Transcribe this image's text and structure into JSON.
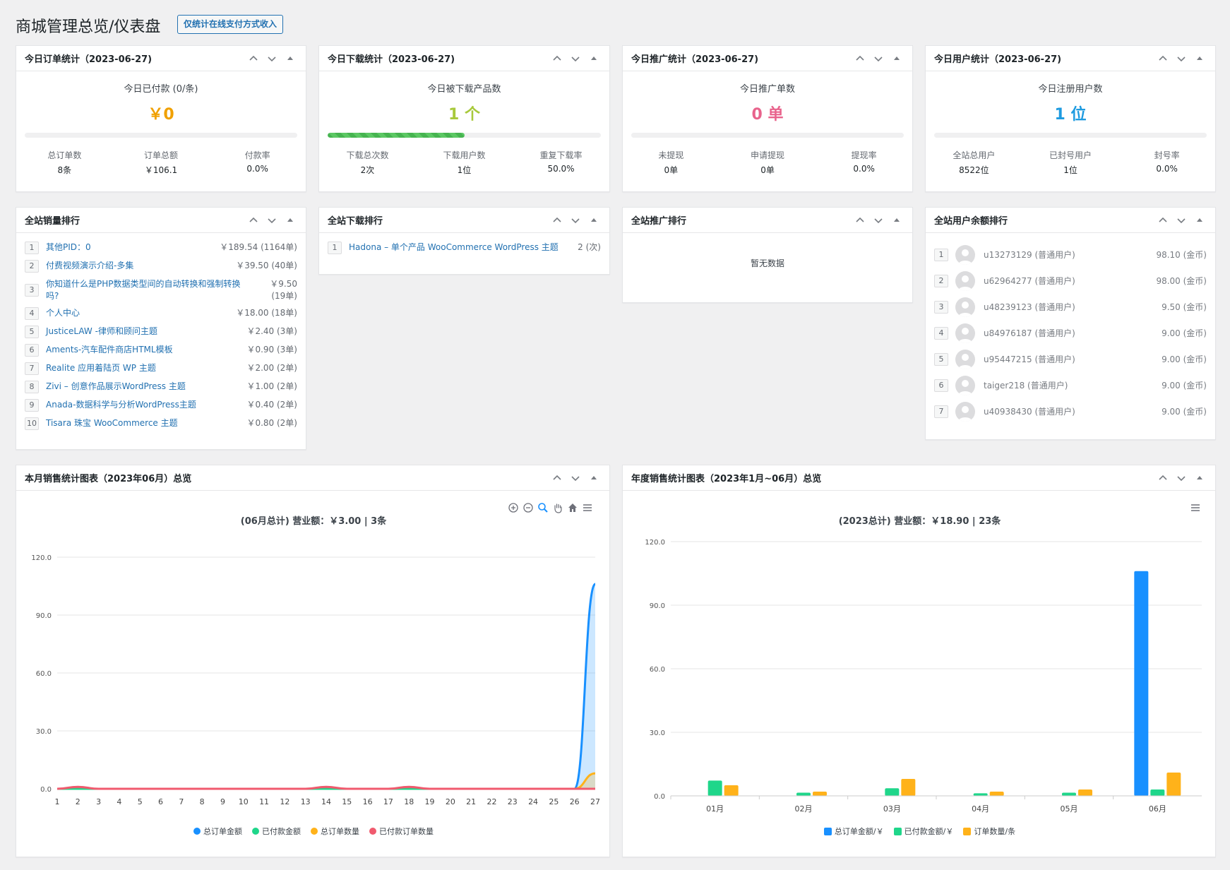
{
  "page": {
    "title": "商城管理总览/仪表盘",
    "filter_button": "仅统计在线支付方式收入"
  },
  "colors": {
    "orange": "#f0a000",
    "green": "#a8c93b",
    "pink": "#e8638c",
    "blue": "#1e9be0",
    "series_blue": "#1890ff",
    "series_green": "#1fd68a",
    "series_orange": "#ffb21a",
    "series_red": "#f05a6e"
  },
  "orders": {
    "title": "今日订单统计（2023-06-27)",
    "sub": "今日已付款 (0/条)",
    "big": "￥0",
    "progress": 0,
    "stats": [
      {
        "label": "总订单数",
        "value": "8条"
      },
      {
        "label": "订单总额",
        "value": "￥106.1"
      },
      {
        "label": "付款率",
        "value": "0.0%"
      }
    ]
  },
  "downloads": {
    "title": "今日下载统计（2023-06-27)",
    "sub": "今日被下载产品数",
    "big": "1 个",
    "progress": 0.5,
    "stats": [
      {
        "label": "下载总次数",
        "value": "2次"
      },
      {
        "label": "下载用户数",
        "value": "1位"
      },
      {
        "label": "重复下载率",
        "value": "50.0%"
      }
    ]
  },
  "promo": {
    "title": "今日推广统计（2023-06-27)",
    "sub": "今日推广单数",
    "big": "0 单",
    "progress": 0,
    "stats": [
      {
        "label": "未提现",
        "value": "0单"
      },
      {
        "label": "申请提现",
        "value": "0单"
      },
      {
        "label": "提现率",
        "value": "0.0%"
      }
    ]
  },
  "users": {
    "title": "今日用户统计（2023-06-27)",
    "sub": "今日注册用户数",
    "big": "1 位",
    "progress": 0,
    "stats": [
      {
        "label": "全站总用户",
        "value": "8522位"
      },
      {
        "label": "已封号用户",
        "value": "1位"
      },
      {
        "label": "封号率",
        "value": "0.0%"
      }
    ]
  },
  "sales_rank": {
    "title": "全站销量排行",
    "items": [
      {
        "n": "1",
        "name": "其他PID：0",
        "value": "￥189.54 (1164单)"
      },
      {
        "n": "2",
        "name": "付费视频演示介绍-多集",
        "value": "￥39.50 (40单)"
      },
      {
        "n": "3",
        "name": "你知道什么是PHP数据类型间的自动转换和强制转换吗?",
        "value": "￥9.50 (19单)"
      },
      {
        "n": "4",
        "name": "个人中心",
        "value": "￥18.00 (18单)"
      },
      {
        "n": "5",
        "name": "JusticeLAW -律师和顾问主题",
        "value": "￥2.40 (3单)"
      },
      {
        "n": "6",
        "name": "Aments-汽车配件商店HTML模板",
        "value": "￥0.90 (3单)"
      },
      {
        "n": "7",
        "name": "Realite 应用着陆页 WP 主题",
        "value": "￥2.00 (2单)"
      },
      {
        "n": "8",
        "name": "Zivi – 创意作品展示WordPress 主题",
        "value": "￥1.00 (2单)"
      },
      {
        "n": "9",
        "name": "Anada-数据科学与分析WordPress主题",
        "value": "￥0.40 (2单)"
      },
      {
        "n": "10",
        "name": "Tisara 珠宝 WooCommerce 主题",
        "value": "￥0.80 (2单)"
      }
    ]
  },
  "download_rank": {
    "title": "全站下载排行",
    "items": [
      {
        "n": "1",
        "name": "Hadona – 单个产品 WooCommerce WordPress 主题",
        "value": "2 (次)"
      }
    ]
  },
  "promo_rank": {
    "title": "全站推广排行",
    "empty": "暂无数据"
  },
  "balance_rank": {
    "title": "全站用户余额排行",
    "items": [
      {
        "n": "1",
        "name": "u13273129 (普通用户)",
        "value": "98.10 (金币)"
      },
      {
        "n": "2",
        "name": "u62964277 (普通用户)",
        "value": "98.00 (金币)"
      },
      {
        "n": "3",
        "name": "u48239123 (普通用户)",
        "value": "9.50 (金币)"
      },
      {
        "n": "4",
        "name": "u84976187 (普通用户)",
        "value": "9.00 (金币)"
      },
      {
        "n": "5",
        "name": "u95447215 (普通用户)",
        "value": "9.00 (金币)"
      },
      {
        "n": "6",
        "name": "taiger218 (普通用户)",
        "value": "9.00 (金币)"
      },
      {
        "n": "7",
        "name": "u40938430 (普通用户)",
        "value": "9.00 (金币)"
      }
    ]
  },
  "month_chart": {
    "title": "本月销售统计图表（2023年06月）总览",
    "chart_title": "(06月总计) 营业额：￥3.00 | 3条",
    "legend": [
      "总订单金额",
      "已付款金额",
      "总订单数量",
      "已付款订单数量"
    ]
  },
  "year_chart": {
    "title": "年度销售统计图表（2023年1月~06月）总览",
    "chart_title": "(2023总计) 营业额：￥18.90 | 23条",
    "legend": [
      "总订单金额/￥",
      "已付款金额/￥",
      "订单数量/条"
    ]
  },
  "chart_data": [
    {
      "type": "line",
      "title": "(06月总计) 营业额：￥3.00 | 3条",
      "x": [
        "1",
        "2",
        "3",
        "4",
        "5",
        "6",
        "7",
        "8",
        "9",
        "10",
        "11",
        "12",
        "13",
        "14",
        "15",
        "16",
        "17",
        "18",
        "19",
        "20",
        "21",
        "22",
        "23",
        "24",
        "25",
        "26",
        "27"
      ],
      "ylim": [
        0,
        120
      ],
      "yticks": [
        "0.0",
        "30.0",
        "60.0",
        "90.0",
        "120.0"
      ],
      "series": [
        {
          "name": "总订单金额",
          "values": [
            0,
            0,
            0,
            0,
            0,
            0,
            0,
            0,
            0,
            0,
            0,
            0,
            0,
            0,
            0,
            0,
            0,
            0,
            0,
            0,
            0,
            0,
            0,
            0,
            0,
            0,
            106.1
          ]
        },
        {
          "name": "已付款金额",
          "values": [
            0,
            0,
            0,
            0,
            0,
            0,
            0,
            0,
            0,
            0,
            0,
            0,
            0,
            0,
            0,
            0,
            0,
            0,
            0,
            0,
            0,
            0,
            0,
            0,
            0,
            0,
            0
          ]
        },
        {
          "name": "总订单数量",
          "values": [
            0,
            0,
            0,
            0,
            0,
            0,
            0,
            0,
            0,
            0,
            0,
            0,
            0,
            0,
            0,
            0,
            0,
            0,
            0,
            0,
            0,
            0,
            0,
            0,
            0,
            0,
            8
          ]
        },
        {
          "name": "已付款订单数量",
          "values": [
            0,
            1,
            0,
            0,
            0,
            0,
            0,
            0,
            0,
            0,
            0,
            0,
            0,
            1,
            0,
            0,
            0,
            1,
            0,
            0,
            0,
            0,
            0,
            0,
            0,
            0,
            0
          ]
        }
      ]
    },
    {
      "type": "bar",
      "title": "(2023总计) 营业额：￥18.90 | 23条",
      "categories": [
        "01月",
        "02月",
        "03月",
        "04月",
        "05月",
        "06月"
      ],
      "ylim": [
        0,
        120
      ],
      "yticks": [
        "0.0",
        "30.0",
        "60.0",
        "90.0",
        "120.0"
      ],
      "series": [
        {
          "name": "总订单金额/￥",
          "values": [
            0,
            0,
            0,
            0,
            0,
            106.1
          ]
        },
        {
          "name": "已付款金额/￥",
          "values": [
            7.2,
            1.5,
            3.6,
            1.2,
            1.5,
            3.0
          ]
        },
        {
          "name": "订单数量/条",
          "values": [
            5,
            2,
            8,
            2,
            3,
            11
          ]
        }
      ]
    }
  ]
}
